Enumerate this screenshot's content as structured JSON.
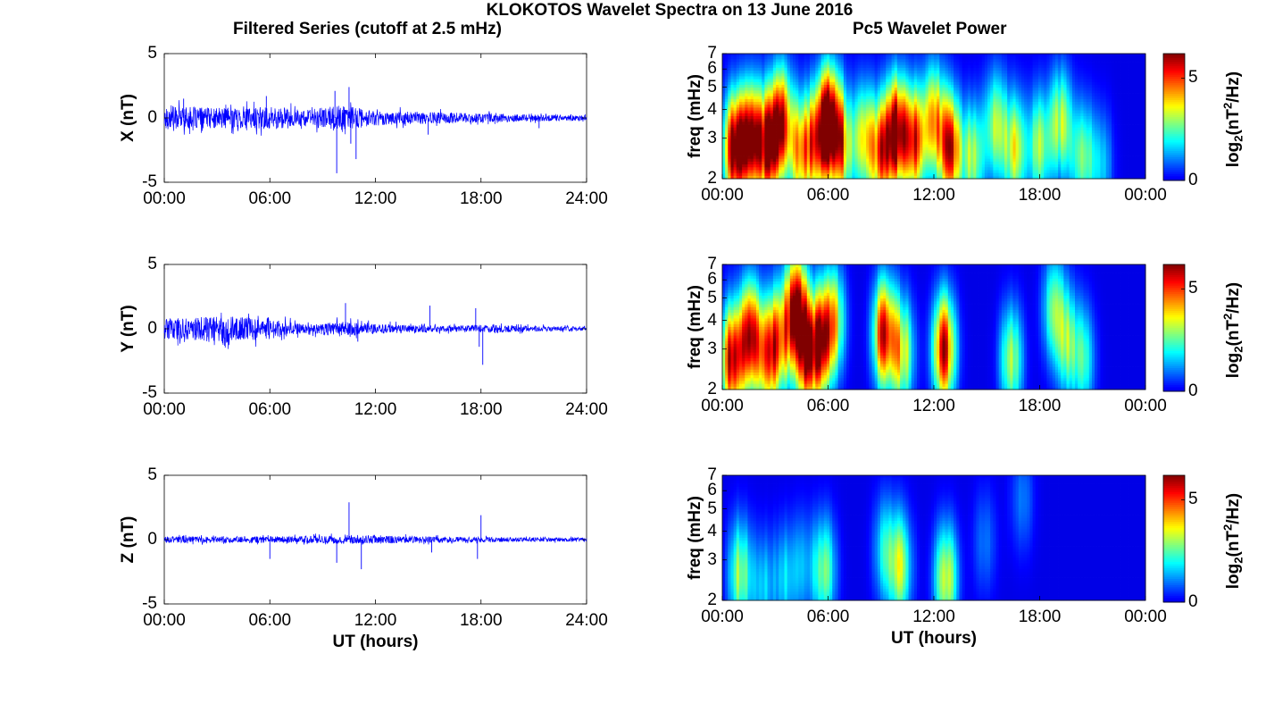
{
  "figure": {
    "title": "KLOKOTOS Wavelet Spectra on 13 June 2016",
    "left_title": "Filtered Series (cutoff at 2.5 mHz)",
    "right_title": "Pc5 Wavelet Power",
    "xlabel": "UT (hours)"
  },
  "colors": {
    "series_line": "#0000ff",
    "axis": "#000000",
    "jet_low": "#00008f",
    "jet_high": "#800000"
  },
  "chart_data": [
    {
      "type": "line",
      "component": "X",
      "ylabel": "X (nT)",
      "xlabel": "",
      "x_range_hours": [
        0,
        24
      ],
      "xticks": [
        "00:00",
        "06:00",
        "12:00",
        "18:00",
        "24:00"
      ],
      "ylim": [
        -5,
        5
      ],
      "yticks": [
        "5",
        "0",
        "-5"
      ],
      "noise_amplitude_by_hour": [
        [
          0,
          0.9
        ],
        [
          3,
          0.8
        ],
        [
          6,
          0.9
        ],
        [
          8,
          0.6
        ],
        [
          10,
          1.0
        ],
        [
          12,
          0.6
        ],
        [
          14,
          0.5
        ],
        [
          18,
          0.35
        ],
        [
          21,
          0.25
        ],
        [
          24,
          0.2
        ]
      ],
      "spikes": [
        [
          1.1,
          1.5
        ],
        [
          5.8,
          1.7
        ],
        [
          9.7,
          2.1
        ],
        [
          9.8,
          -4.3
        ],
        [
          10.5,
          2.4
        ],
        [
          10.6,
          -2.0
        ],
        [
          10.9,
          -3.2
        ],
        [
          15.0,
          -1.3
        ],
        [
          21.3,
          -0.8
        ]
      ]
    },
    {
      "type": "line",
      "component": "Y",
      "ylabel": "Y (nT)",
      "xlabel": "",
      "x_range_hours": [
        0,
        24
      ],
      "xticks": [
        "00:00",
        "06:00",
        "12:00",
        "18:00",
        "24:00"
      ],
      "ylim": [
        -5,
        5
      ],
      "yticks": [
        "5",
        "0",
        "-5"
      ],
      "noise_amplitude_by_hour": [
        [
          0,
          0.8
        ],
        [
          4,
          1.0
        ],
        [
          6,
          0.8
        ],
        [
          8,
          0.35
        ],
        [
          10,
          0.6
        ],
        [
          12,
          0.4
        ],
        [
          16,
          0.25
        ],
        [
          18,
          0.3
        ],
        [
          20,
          0.25
        ],
        [
          24,
          0.15
        ]
      ],
      "spikes": [
        [
          10.3,
          2.0
        ],
        [
          11.0,
          -1.0
        ],
        [
          15.1,
          1.8
        ],
        [
          17.7,
          1.6
        ],
        [
          17.9,
          -1.4
        ],
        [
          18.1,
          -2.8
        ]
      ]
    },
    {
      "type": "line",
      "component": "Z",
      "ylabel": "Z (nT)",
      "xlabel": "UT (hours)",
      "x_range_hours": [
        0,
        24
      ],
      "xticks": [
        "00:00",
        "06:00",
        "12:00",
        "18:00",
        "24:00"
      ],
      "ylim": [
        -5,
        5
      ],
      "yticks": [
        "5",
        "0",
        "-5"
      ],
      "noise_amplitude_by_hour": [
        [
          0,
          0.25
        ],
        [
          6,
          0.25
        ],
        [
          9,
          0.3
        ],
        [
          12,
          0.3
        ],
        [
          18,
          0.2
        ],
        [
          24,
          0.15
        ]
      ],
      "spikes": [
        [
          6.0,
          -1.5
        ],
        [
          9.8,
          -1.8
        ],
        [
          10.5,
          2.9
        ],
        [
          11.2,
          -2.3
        ],
        [
          15.2,
          -1.0
        ],
        [
          17.8,
          -1.5
        ],
        [
          18.0,
          1.9
        ]
      ]
    },
    {
      "type": "heatmap",
      "component": "X",
      "ylabel": "freq (mHz)",
      "xlabel": "",
      "x_range_hours": [
        0,
        24
      ],
      "xticks": [
        "00:00",
        "06:00",
        "12:00",
        "18:00",
        "00:00"
      ],
      "ylim": [
        2,
        7
      ],
      "y_scale": "log",
      "yticks": [
        "7",
        "6",
        "5",
        "4",
        "3",
        "2"
      ],
      "colorbar": {
        "label_main": "log",
        "label_sub": "2",
        "label_rest": "(nT",
        "label_sup": "2",
        "label_end": "/Hz)",
        "range": [
          0,
          6.2
        ],
        "ticks": [
          "5",
          "0"
        ]
      },
      "blobs": [
        [
          0.7,
          2.7,
          6.0
        ],
        [
          1.6,
          3.0,
          5.0
        ],
        [
          2.6,
          2.8,
          6.0
        ],
        [
          3.4,
          3.6,
          4.5
        ],
        [
          4.4,
          2.6,
          4.0
        ],
        [
          5.3,
          2.9,
          4.5
        ],
        [
          6.1,
          3.6,
          6.0
        ],
        [
          6.7,
          2.7,
          4.0
        ],
        [
          8.0,
          3.0,
          3.5
        ],
        [
          9.0,
          2.6,
          4.5
        ],
        [
          9.9,
          3.2,
          6.2
        ],
        [
          10.9,
          2.9,
          5.0
        ],
        [
          12.0,
          3.7,
          3.5
        ],
        [
          12.9,
          2.7,
          5.5
        ],
        [
          14.2,
          2.5,
          3.0
        ],
        [
          15.5,
          3.4,
          3.0
        ],
        [
          16.6,
          2.7,
          3.5
        ],
        [
          18.0,
          2.8,
          3.0
        ],
        [
          19.2,
          3.5,
          3.0
        ],
        [
          20.4,
          2.5,
          3.0
        ],
        [
          21.5,
          2.3,
          1.6
        ]
      ]
    },
    {
      "type": "heatmap",
      "component": "Y",
      "ylabel": "freq (mHz)",
      "xlabel": "",
      "x_range_hours": [
        0,
        24
      ],
      "xticks": [
        "00:00",
        "06:00",
        "12:00",
        "18:00",
        "00:00"
      ],
      "ylim": [
        2,
        7
      ],
      "y_scale": "log",
      "yticks": [
        "7",
        "6",
        "5",
        "4",
        "3",
        "2"
      ],
      "colorbar": {
        "label_main": "log",
        "label_sub": "2",
        "label_rest": "(nT",
        "label_sup": "2",
        "label_end": "/Hz)",
        "range": [
          0,
          6.2
        ],
        "ticks": [
          "5",
          "0"
        ]
      },
      "blobs": [
        [
          0.6,
          2.7,
          6.0
        ],
        [
          1.6,
          3.5,
          4.5
        ],
        [
          2.5,
          2.8,
          4.5
        ],
        [
          3.3,
          3.3,
          4.0
        ],
        [
          4.2,
          4.6,
          5.5
        ],
        [
          4.8,
          2.8,
          5.0
        ],
        [
          5.6,
          3.2,
          4.5
        ],
        [
          6.3,
          4.0,
          3.5
        ],
        [
          9.2,
          3.5,
          5.5
        ],
        [
          10.2,
          2.9,
          3.5
        ],
        [
          12.6,
          3.0,
          5.5
        ],
        [
          16.4,
          2.7,
          3.0
        ],
        [
          18.8,
          4.5,
          2.5
        ],
        [
          19.6,
          3.2,
          2.5
        ],
        [
          20.5,
          2.7,
          2.0
        ]
      ]
    },
    {
      "type": "heatmap",
      "component": "Z",
      "ylabel": "freq (mHz)",
      "xlabel": "UT (hours)",
      "x_range_hours": [
        0,
        24
      ],
      "xticks": [
        "00:00",
        "06:00",
        "12:00",
        "18:00",
        "00:00"
      ],
      "ylim": [
        2,
        7
      ],
      "y_scale": "log",
      "yticks": [
        "7",
        "6",
        "5",
        "4",
        "3",
        "2"
      ],
      "colorbar": {
        "label_main": "log",
        "label_sub": "2",
        "label_rest": "(nT",
        "label_sup": "2",
        "label_end": "/Hz)",
        "range": [
          0,
          6.2
        ],
        "ticks": [
          "5",
          "0"
        ]
      },
      "blobs": [
        [
          1.0,
          2.6,
          3.0
        ],
        [
          2.3,
          2.3,
          1.6
        ],
        [
          3.5,
          2.5,
          1.6
        ],
        [
          4.6,
          2.8,
          1.4
        ],
        [
          5.8,
          2.7,
          2.8
        ],
        [
          9.2,
          3.3,
          1.8
        ],
        [
          10.1,
          2.8,
          3.0
        ],
        [
          12.7,
          2.5,
          3.5
        ],
        [
          14.9,
          3.6,
          1.0
        ],
        [
          17.0,
          5.5,
          1.0
        ]
      ]
    }
  ]
}
